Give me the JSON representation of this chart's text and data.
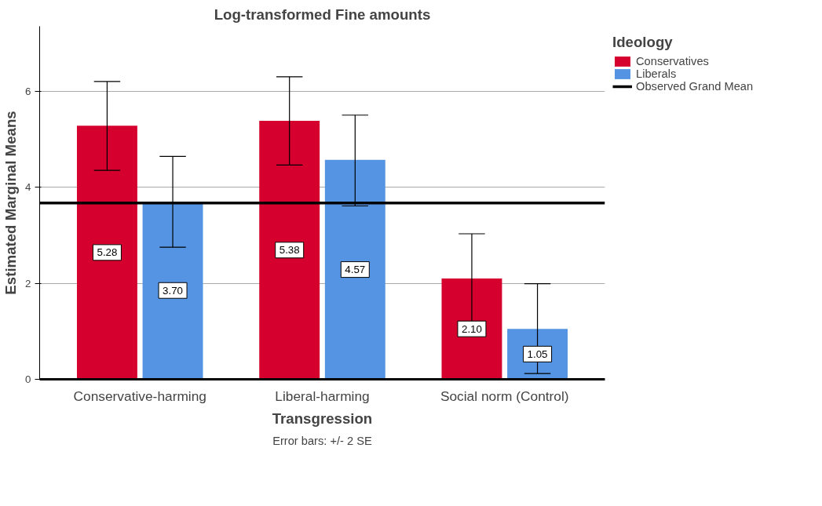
{
  "chart_data": {
    "type": "bar",
    "title": "Log-transformed Fine amounts",
    "xlabel": "Transgression",
    "ylabel": "Estimated Marginal Means",
    "legend_title": "Ideology",
    "categories": [
      "Conservative-harming",
      "Liberal-harming",
      "Social norm (Control)"
    ],
    "series": [
      {
        "name": "Conservatives",
        "color": "#d5002d",
        "values": [
          5.28,
          5.38,
          2.1
        ],
        "value_labels": [
          "5.28",
          "5.38",
          "2.10"
        ],
        "errors": [
          [
            4.35,
            6.2
          ],
          [
            4.46,
            6.3
          ],
          [
            1.2,
            3.03
          ]
        ]
      },
      {
        "name": "Liberals",
        "color": "#5494e3",
        "values": [
          3.7,
          4.57,
          1.05
        ],
        "value_labels": [
          "3.70",
          "4.57",
          "1.05"
        ],
        "errors": [
          [
            2.75,
            4.64
          ],
          [
            3.61,
            5.5
          ],
          [
            0.12,
            1.99
          ]
        ]
      }
    ],
    "ref_lines": [
      {
        "axis": "y",
        "value": 3.67,
        "label": "Observed Grand Mean",
        "color": "#000000"
      }
    ],
    "ylim": [
      0,
      7.35
    ],
    "yticks": [
      0,
      2,
      4,
      6
    ],
    "grid": "y",
    "legend": "top right",
    "annotations": [
      "Error bars: +/- 2 SE"
    ]
  }
}
